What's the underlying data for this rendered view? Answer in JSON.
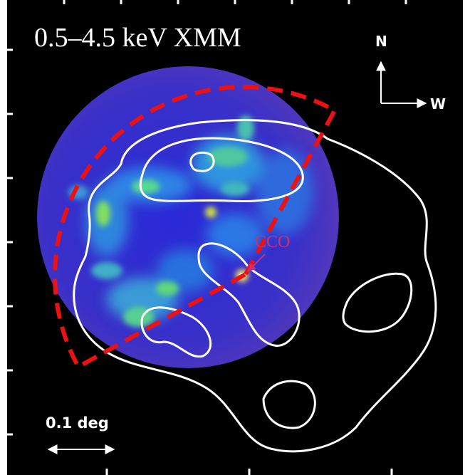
{
  "title": "0.5–4.5 keV XMM",
  "compass": {
    "north": "N",
    "west": "W"
  },
  "labels": {
    "source": "CCO"
  },
  "scale_bar": {
    "label": "0.1 deg"
  }
}
